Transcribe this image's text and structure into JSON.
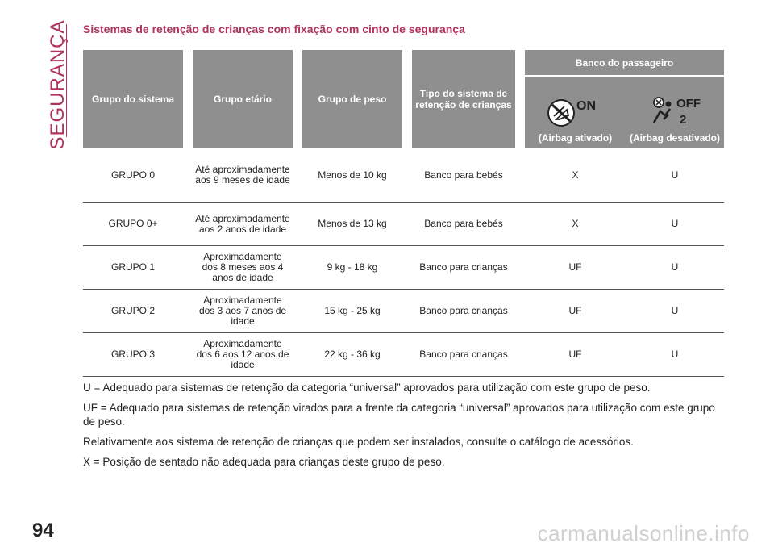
{
  "section_label": "SEGURANÇA",
  "title": "Sistemas de retenção de crianças com fixação com cinto de segurança",
  "table": {
    "headers": {
      "system_group": "Grupo do sistema",
      "age_group": "Grupo etário",
      "weight_group": "Grupo de peso",
      "system_type": "Tipo do sistema de retenção de crianças",
      "passenger_seat": "Banco do passageiro",
      "airbag_on_badge": "ON",
      "airbag_on": "(Airbag ativado)",
      "airbag_off_badge": "OFF",
      "airbag_off_badge_num": "2",
      "airbag_off": "(Airbag desativado)"
    },
    "rows": [
      {
        "group": "GRUPO 0",
        "age": "Até aproximadamente aos 9 meses de idade",
        "weight": "Menos de 10 kg",
        "type": "Banco para bebés",
        "on": "X",
        "off": "U"
      },
      {
        "group": "GRUPO 0+",
        "age": "Até aproximadamente aos 2 anos de idade",
        "weight": "Menos de 13 kg",
        "type": "Banco para bebés",
        "on": "X",
        "off": "U"
      },
      {
        "group": "GRUPO 1",
        "age": "Aproximadamente dos 8 meses aos 4 anos de idade",
        "weight": "9 kg - 18 kg",
        "type": "Banco para crianças",
        "on": "UF",
        "off": "U"
      },
      {
        "group": "GRUPO 2",
        "age": "Aproximadamente dos 3 aos 7 anos de idade",
        "weight": "15 kg - 25 kg",
        "type": "Banco para crianças",
        "on": "UF",
        "off": "U"
      },
      {
        "group": "GRUPO 3",
        "age": "Aproximadamente dos 6 aos 12 anos de idade",
        "weight": "22 kg - 36 kg",
        "type": "Banco para crianças",
        "on": "UF",
        "off": "U"
      }
    ]
  },
  "notes": [
    "U = Adequado para sistemas de retenção da categoria “universal” aprovados para utilização com este grupo de peso.",
    "UF = Adequado para sistemas de retenção virados para a frente da categoria “universal” aprovados para utilização com este grupo de peso.",
    "Relativamente aos sistema de retenção de crianças que podem ser instalados, consulte o catálogo de acessórios.",
    "X = Posição de sentado não adequada para crianças deste grupo de peso."
  ],
  "page_number": "94",
  "watermark": "carmanualsonline.info",
  "colors": {
    "accent": "#b0325f",
    "header_bg": "#8f8f8f"
  },
  "icons": {
    "airbag_on": "airbag-on-icon",
    "airbag_off": "airbag-off-icon"
  }
}
